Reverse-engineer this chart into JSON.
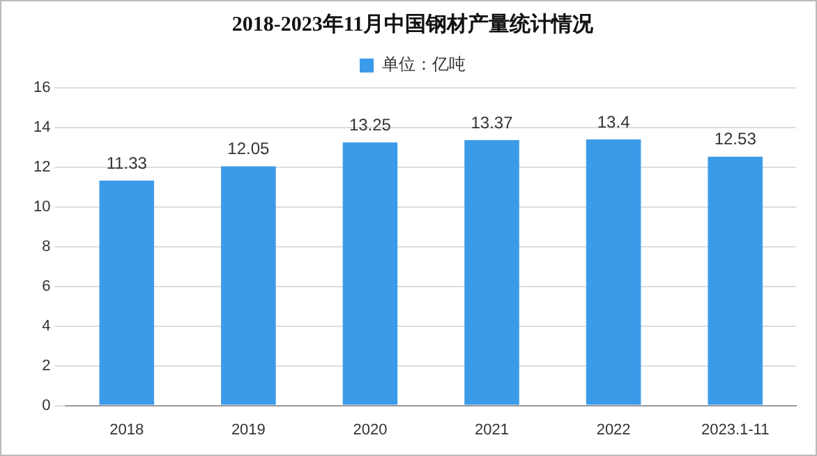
{
  "chart_data": {
    "type": "bar",
    "title": "2018-2023年11月中国钢材产量统计情况",
    "categories": [
      "2018",
      "2019",
      "2020",
      "2021",
      "2022",
      "2023.1-11"
    ],
    "series": [
      {
        "name": "单位：亿吨",
        "color": "#3c9be9",
        "values": [
          11.33,
          12.05,
          13.25,
          13.37,
          13.4,
          12.53
        ]
      }
    ],
    "ylim": [
      0,
      16
    ],
    "yticks": [
      0,
      2,
      4,
      6,
      8,
      10,
      12,
      14,
      16
    ],
    "grid": "y",
    "legend": "top",
    "data_labels": true
  }
}
